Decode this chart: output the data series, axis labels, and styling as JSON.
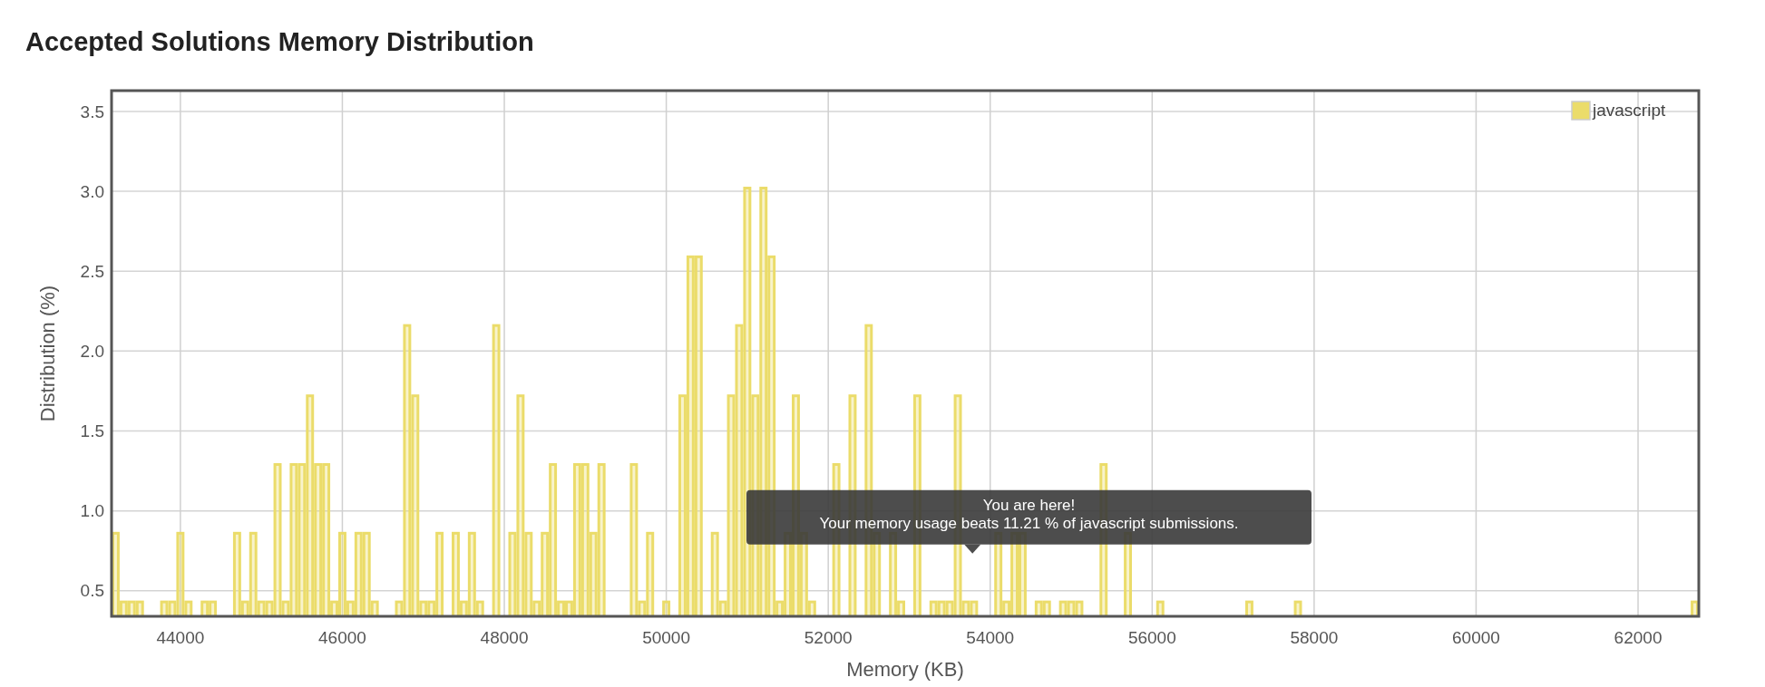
{
  "chart_data": {
    "type": "histogram",
    "title": "Accepted Solutions Memory Distribution",
    "xlabel": "Memory (KB)",
    "ylabel": "Distribution (%)",
    "bins": [
      43150,
      43250,
      43350,
      43450,
      43550,
      43650,
      43750,
      43850,
      43950,
      44050,
      44150,
      44250,
      44350,
      44450,
      44550,
      44650,
      44750,
      44850,
      44950,
      45050,
      45150,
      45250,
      45350,
      45450,
      45550,
      45650,
      45750,
      45850,
      45950,
      46050,
      46150,
      46250,
      46350,
      46450,
      46550,
      46650,
      46750,
      46850,
      46950,
      47050,
      47150,
      47250,
      47350,
      47450,
      47550,
      47650,
      47750,
      47850,
      47950,
      48050,
      48150,
      48250,
      48350,
      48450,
      48550,
      48650,
      48750,
      48850,
      48950,
      49050,
      49150,
      49250,
      49350,
      49450,
      49550,
      49650,
      49750,
      49850,
      49950,
      50050,
      50150,
      50250,
      50350,
      50450,
      50550,
      50650,
      50750,
      50850,
      50950,
      51050,
      51150,
      51250,
      51350,
      51450,
      51550,
      51650,
      51750,
      51850,
      51950,
      52050,
      52150,
      52250,
      52350,
      52450,
      52550,
      52650,
      52750,
      52850,
      52950,
      53050,
      53150,
      53250,
      53350,
      53450,
      53550,
      53650,
      53750,
      53850,
      53950,
      54050,
      54150,
      54250,
      54350,
      54450,
      54550,
      54650,
      54750,
      54850,
      54950,
      55050,
      55150,
      55250,
      55350,
      55450,
      55550,
      55650,
      55750,
      55850,
      55950,
      56050,
      56150,
      56250,
      56350,
      56450,
      56550,
      56650,
      56750,
      56850,
      56950,
      57050,
      57150,
      57250,
      57350,
      57450,
      57550,
      57650,
      57750,
      57850,
      57950,
      58050,
      58150,
      58250,
      58350,
      58450,
      58550,
      58650,
      58750,
      58850,
      58950,
      59050,
      59150,
      59250,
      59350,
      59450,
      59550,
      59650,
      59750,
      59850,
      59950,
      60050,
      60150,
      60250,
      60350,
      60450,
      60550,
      60650,
      60750,
      60850,
      60950,
      61050,
      61150,
      61250,
      61350,
      61450,
      61550,
      61650,
      61750,
      61850,
      61950,
      62050,
      62150,
      62250,
      62350,
      62450,
      62550,
      62650,
      62750
    ],
    "series": [
      {
        "name": "javascript",
        "color": "#ebdc6a",
        "values": [
          0.86,
          0.43,
          0.43,
          0.43,
          null,
          null,
          0.43,
          0.43,
          0.86,
          0.43,
          null,
          0.43,
          0.43,
          null,
          null,
          0.86,
          0.43,
          0.86,
          0.43,
          0.43,
          1.29,
          0.43,
          1.29,
          1.29,
          1.72,
          1.29,
          1.29,
          0.43,
          0.86,
          0.43,
          0.86,
          0.86,
          0.43,
          null,
          null,
          0.43,
          2.16,
          1.72,
          0.43,
          0.43,
          0.86,
          null,
          0.86,
          0.43,
          0.86,
          0.43,
          null,
          2.16,
          null,
          0.86,
          1.72,
          0.86,
          0.43,
          0.86,
          1.29,
          0.43,
          0.43,
          1.29,
          1.29,
          0.86,
          1.29,
          null,
          null,
          null,
          1.29,
          0.43,
          0.86,
          null,
          0.43,
          null,
          1.72,
          2.59,
          2.59,
          null,
          0.86,
          0.43,
          1.72,
          2.16,
          3.02,
          1.72,
          3.02,
          2.59,
          0.43,
          0.86,
          1.72,
          0.86,
          0.43,
          null,
          null,
          1.29,
          null,
          1.72,
          null,
          2.16,
          0.86,
          null,
          0.86,
          0.43,
          null,
          1.72,
          null,
          0.43,
          0.43,
          0.43,
          1.72,
          0.43,
          0.43,
          null,
          null,
          0.86,
          0.43,
          0.86,
          0.86,
          null,
          0.43,
          0.43,
          null,
          0.43,
          0.43,
          0.43,
          null,
          null,
          1.29,
          null,
          null,
          0.86,
          null,
          null,
          null,
          0.43,
          null,
          null,
          null,
          null,
          null,
          null,
          null,
          null,
          null,
          null,
          0.43,
          null,
          null,
          null,
          null,
          null,
          0.43,
          null,
          null,
          null,
          null,
          null,
          null,
          null,
          null,
          null,
          null,
          null,
          null,
          null,
          null,
          null,
          null,
          null,
          null,
          null,
          null,
          null,
          null,
          null,
          null,
          null,
          null,
          null,
          null,
          null,
          null,
          null,
          null,
          null,
          null,
          null,
          null,
          null,
          null,
          null,
          null,
          null,
          null,
          null,
          null,
          null,
          null,
          null,
          null,
          0.43
        ]
      }
    ],
    "xlim": [
      43150,
      62750
    ],
    "xticks": [
      44000,
      46000,
      48000,
      50000,
      52000,
      54000,
      56000,
      58000,
      60000,
      62000
    ],
    "ylim": [
      0.34,
      3.63
    ],
    "yticks": [
      0.5,
      {
        "value": 1,
        "label": "1.0"
      },
      1.5,
      {
        "value": 2,
        "label": "2.0"
      },
      2.5,
      {
        "value": 3,
        "label": "3.0"
      },
      3.5
    ],
    "grid": true,
    "legend": "top right",
    "annotations": [
      "You are here!",
      "Your memory usage beats 11.21 % of javascript submissions."
    ]
  }
}
